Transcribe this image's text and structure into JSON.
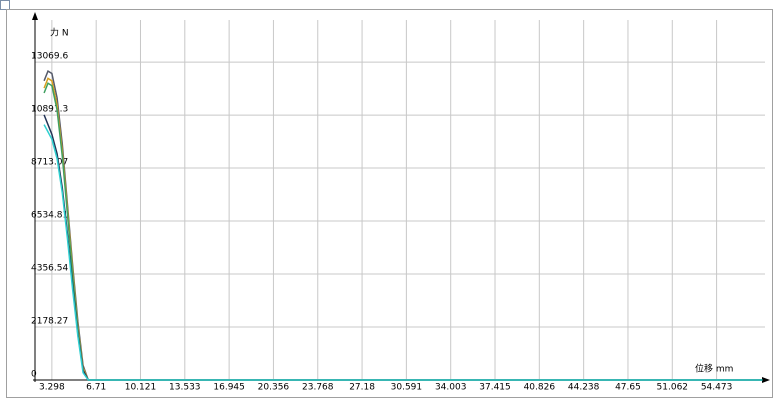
{
  "chart_data": {
    "type": "line",
    "y_label": "力 N",
    "x_label": "位移 mm",
    "x": [
      2.7,
      3.0,
      3.3,
      3.7,
      4.1,
      4.5,
      4.9,
      5.3,
      5.7,
      6.1,
      6.5,
      10,
      20,
      30,
      40,
      50,
      58
    ],
    "series": [
      {
        "color": "#555a6a",
        "values": [
          12300,
          12700,
          12600,
          11600,
          9700,
          7200,
          4700,
          2400,
          600,
          0,
          0,
          0,
          0,
          0,
          0,
          0,
          0
        ]
      },
      {
        "color": "#d8a020",
        "values": [
          12000,
          12400,
          12300,
          11300,
          9400,
          7000,
          4500,
          2200,
          500,
          0,
          0,
          0,
          0,
          0,
          0,
          0,
          0
        ]
      },
      {
        "color": "#40a060",
        "values": [
          11800,
          12200,
          12100,
          11100,
          9200,
          6800,
          4300,
          2100,
          400,
          0,
          0,
          0,
          0,
          0,
          0,
          0,
          0
        ]
      },
      {
        "color": "#223355",
        "values": [
          10900,
          10500,
          10100,
          9300,
          7900,
          6000,
          3900,
          1900,
          400,
          0,
          0,
          0,
          0,
          0,
          0,
          0,
          0
        ]
      },
      {
        "color": "#30d0d0",
        "values": [
          10500,
          10200,
          9900,
          9100,
          7700,
          5800,
          3700,
          1800,
          300,
          0,
          0,
          0,
          0,
          0,
          0,
          0,
          0
        ]
      }
    ],
    "xlim": [
      2,
      58.2
    ],
    "ylim": [
      0,
      14800
    ],
    "xticks": [
      3.298,
      6.71,
      10.121,
      13.533,
      16.945,
      20.356,
      23.768,
      27.18,
      30.591,
      34.003,
      37.415,
      40.826,
      44.238,
      47.65,
      51.062,
      54.473
    ],
    "yticks": [
      0,
      2178.27,
      4356.54,
      6534.81,
      8713.07,
      10891.3,
      13069.6
    ],
    "grid": true
  }
}
